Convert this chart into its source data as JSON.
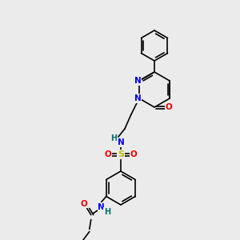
{
  "background_color": "#ebebeb",
  "bond_color": "#000000",
  "atom_colors": {
    "N": "#0000ee",
    "O": "#ee0000",
    "S": "#bbbb00",
    "H": "#007070",
    "C": "#000000"
  },
  "figsize": [
    3.0,
    3.0
  ],
  "dpi": 100
}
